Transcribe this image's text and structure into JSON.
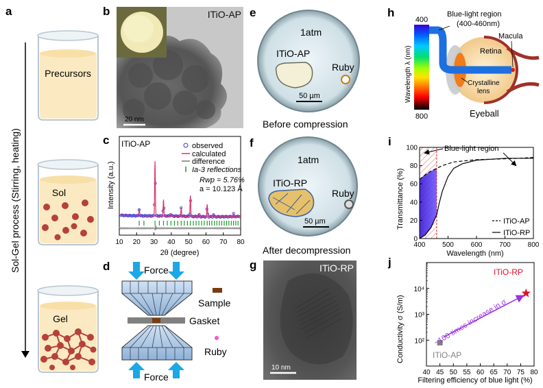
{
  "panel_letters": {
    "a": "a",
    "b": "b",
    "c": "c",
    "d": "d",
    "e": "e",
    "f": "f",
    "g": "g",
    "h": "h",
    "i": "i",
    "j": "j"
  },
  "panel_a": {
    "process_label": "Sol-Gel process (Stirring, heating)",
    "beakers": [
      "Precursors",
      "Sol",
      "Gel"
    ],
    "colors": {
      "liquid": "#fbe9c2",
      "particle": "#b5423a",
      "glass": "#dbe5ec"
    }
  },
  "panel_b": {
    "title": "ITiO-AP",
    "scale": "20 nm"
  },
  "panel_c": {
    "sample": "ITiO-AP",
    "legend": [
      "observed",
      "calculated",
      "difference",
      "Ia-3 reflections"
    ],
    "rwp": "Rwp = 5.76%",
    "a_param": "a = 10.123 Å"
  },
  "panel_d": {
    "force_top": "Force",
    "force_bottom": "Force",
    "sample": "Sample",
    "gasket": "Gasket",
    "ruby": "Ruby"
  },
  "panel_e": {
    "pressure": "1atm",
    "sample": "ITiO-AP",
    "ruby": "Ruby",
    "scale": "50 µm",
    "caption": "Before compression"
  },
  "panel_f": {
    "pressure": "1atm",
    "sample": "ITiO-RP",
    "ruby": "Ruby",
    "scale": "50 µm",
    "caption": "After decompression"
  },
  "panel_g": {
    "title": "ITiO-RP",
    "scale": "10 nm"
  },
  "panel_h": {
    "region": "Blue-light region",
    "range": "(400-460nm)",
    "wl_top": "400",
    "wl_bottom": "800",
    "wl_axis": "Wavelength λ (nm)",
    "macula": "Macula",
    "retina": "Retina",
    "lens_1": "Crystalline",
    "lens_2": "lens",
    "eyeball": "Eyeball"
  },
  "chart_data": [
    {
      "type": "line",
      "panel": "c",
      "xlabel": "2θ (degree)",
      "ylabel": "Intensity (a.u.)",
      "xlim": [
        10,
        80
      ],
      "x_ticks": [
        10,
        20,
        30,
        40,
        50,
        60,
        70,
        80
      ],
      "peaks": [
        {
          "x": 21.5,
          "h": 0.12
        },
        {
          "x": 30.6,
          "h": 1.0
        },
        {
          "x": 35.5,
          "h": 0.3
        },
        {
          "x": 45.7,
          "h": 0.16
        },
        {
          "x": 51.0,
          "h": 0.38
        },
        {
          "x": 60.7,
          "h": 0.22
        },
        {
          "x": 39.8,
          "h": 0.05
        },
        {
          "x": 55.9,
          "h": 0.05
        },
        {
          "x": 64.4,
          "h": 0.04
        },
        {
          "x": 75.9,
          "h": 0.05
        }
      ],
      "reflections": [
        21.5,
        24.2,
        30.6,
        33.1,
        35.5,
        37.7,
        39.8,
        41.8,
        43.7,
        45.7,
        47.5,
        49.3,
        51.0,
        52.7,
        54.3,
        55.9,
        57.5,
        59.0,
        60.7,
        62.0,
        63.4,
        64.9,
        66.3,
        67.7,
        69.1,
        70.5,
        71.9,
        73.2,
        74.6,
        75.9,
        77.2,
        78.5
      ]
    },
    {
      "type": "line",
      "panel": "i",
      "xlabel": "Wavelength (nm)",
      "ylabel": "Transmittance (%)",
      "xlim": [
        400,
        800
      ],
      "ylim": [
        0,
        100
      ],
      "x_ticks": [
        400,
        500,
        600,
        700,
        800
      ],
      "y_ticks": [
        0,
        20,
        40,
        60,
        80,
        100
      ],
      "annotation": "Blue-light region",
      "series": [
        {
          "name": "ITiO-AP",
          "style": "dashed",
          "x": [
            400,
            420,
            440,
            460,
            480,
            500,
            520,
            550,
            600,
            650,
            700,
            750,
            800
          ],
          "y": [
            65,
            70,
            74,
            77,
            80,
            82,
            84,
            85,
            86.5,
            87,
            87.5,
            88,
            89
          ]
        },
        {
          "name": "ITiO-RP",
          "style": "solid",
          "x": [
            400,
            420,
            440,
            460,
            470,
            480,
            500,
            520,
            550,
            600,
            650,
            700,
            750,
            800
          ],
          "y": [
            0,
            4,
            12,
            26,
            40,
            52,
            68,
            77,
            82,
            86,
            87,
            88,
            88,
            88
          ]
        }
      ]
    },
    {
      "type": "scatter",
      "panel": "j",
      "xlabel": "Filtering efficiency of blue light (%)",
      "ylabel": "Conductivity σ (S/m)",
      "xlim": [
        40,
        80
      ],
      "y_log": true,
      "ylim": [
        10,
        100000
      ],
      "x_ticks": [
        40,
        45,
        50,
        55,
        60,
        65,
        70,
        75,
        80
      ],
      "y_tick_labels": [
        "10²",
        "10³",
        "10⁴"
      ],
      "y_tick_values": [
        100,
        1000,
        10000
      ],
      "annotation": "~100 times increase in σ",
      "points": [
        {
          "name": "ITiO-AP",
          "x": 45,
          "y": 80,
          "color": "#808080"
        },
        {
          "name": "ITiO-RP",
          "x": 77,
          "y": 6500,
          "color": "#e0102a"
        }
      ]
    }
  ]
}
